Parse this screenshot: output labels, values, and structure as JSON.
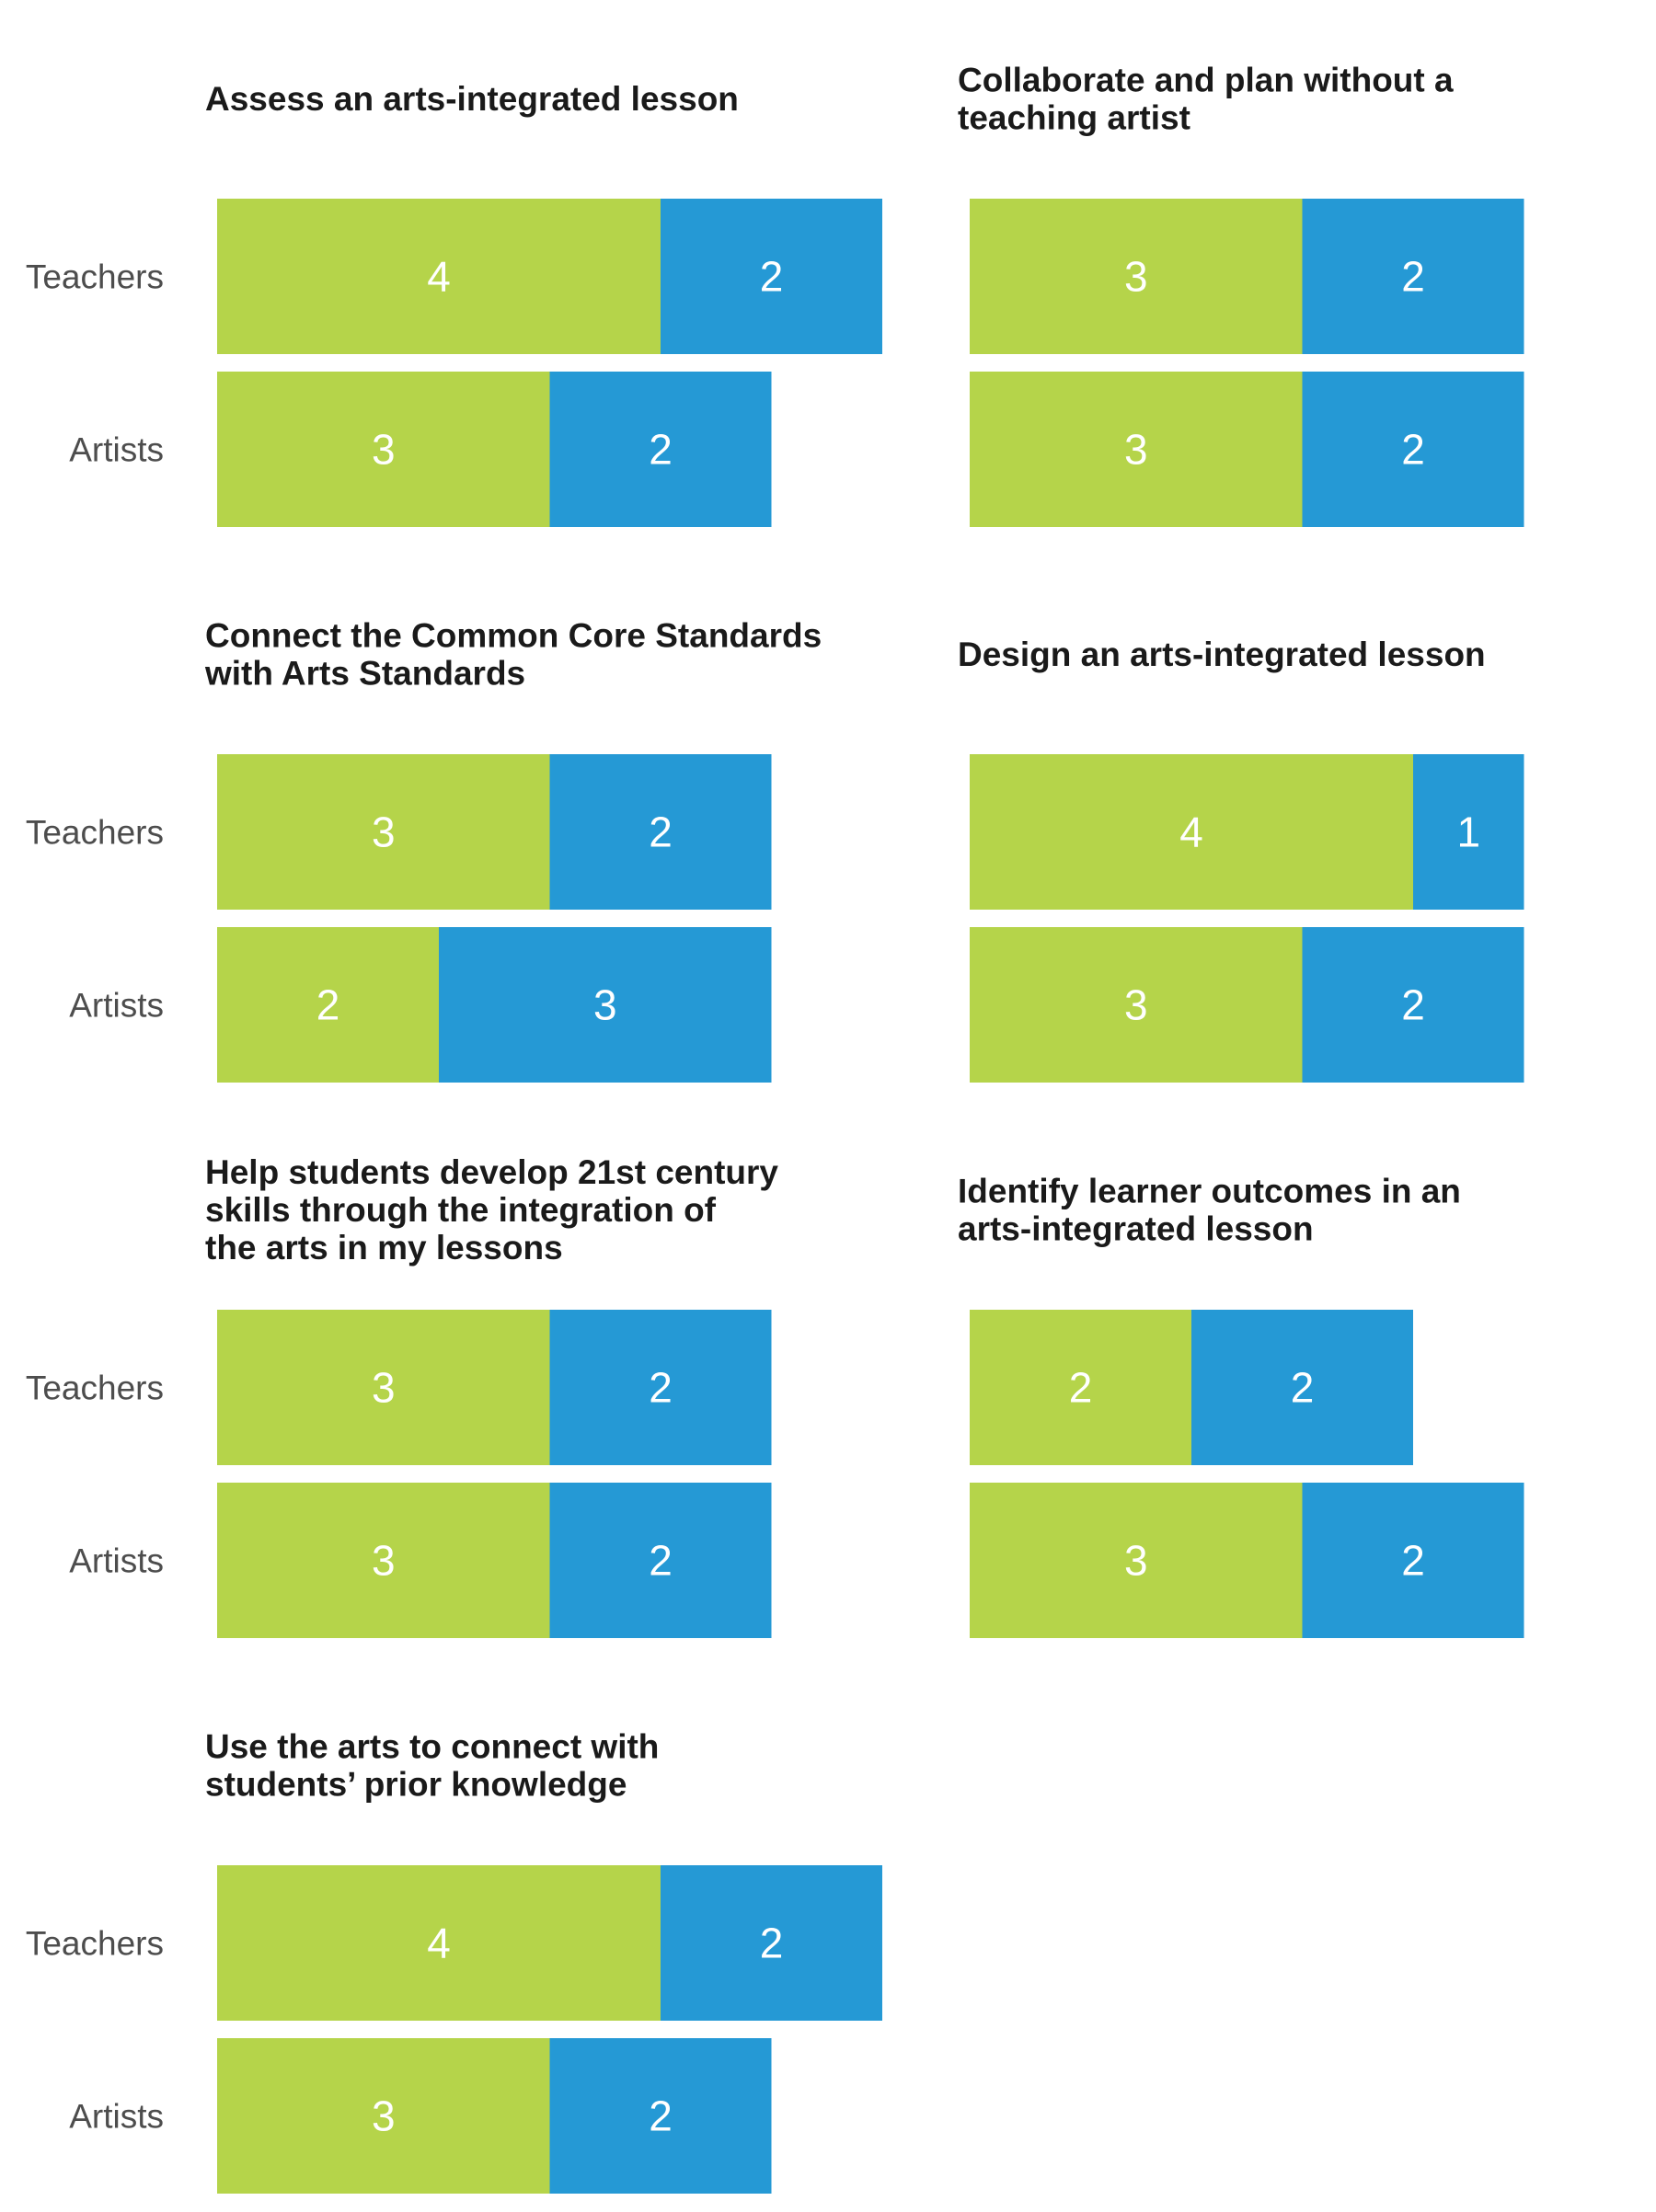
{
  "colors": {
    "green": "#b5d44a",
    "blue": "#2599d5",
    "title_text": "#1a1a1a",
    "label_text": "#4d4d4d",
    "segment_text": "#ffffff"
  },
  "chart_data": [
    {
      "type": "bar",
      "orientation": "horizontal",
      "stacked": true,
      "title": "Assess an arts-integrated lesson",
      "categories": [
        "Teachers",
        "Artists"
      ],
      "series": [
        {
          "color": "#b5d44a",
          "values": [
            4,
            3
          ]
        },
        {
          "color": "#2599d5",
          "values": [
            2,
            2
          ]
        }
      ]
    },
    {
      "type": "bar",
      "orientation": "horizontal",
      "stacked": true,
      "title": "Collaborate and plan without a\nteaching artist",
      "categories": [
        "",
        ""
      ],
      "series": [
        {
          "color": "#b5d44a",
          "values": [
            3,
            3
          ]
        },
        {
          "color": "#2599d5",
          "values": [
            2,
            2
          ]
        }
      ]
    },
    {
      "type": "bar",
      "orientation": "horizontal",
      "stacked": true,
      "title": "Connect the Common Core Standards\nwith Arts Standards",
      "categories": [
        "Teachers",
        "Artists"
      ],
      "series": [
        {
          "color": "#b5d44a",
          "values": [
            3,
            2
          ]
        },
        {
          "color": "#2599d5",
          "values": [
            2,
            3
          ]
        }
      ]
    },
    {
      "type": "bar",
      "orientation": "horizontal",
      "stacked": true,
      "title": "Design an arts-integrated lesson",
      "categories": [
        "",
        ""
      ],
      "series": [
        {
          "color": "#b5d44a",
          "values": [
            4,
            3
          ]
        },
        {
          "color": "#2599d5",
          "values": [
            1,
            2
          ]
        }
      ]
    },
    {
      "type": "bar",
      "orientation": "horizontal",
      "stacked": true,
      "title": "Help students develop 21st century\nskills through the integration of\nthe arts in my lessons",
      "categories": [
        "Teachers",
        "Artists"
      ],
      "series": [
        {
          "color": "#b5d44a",
          "values": [
            3,
            3
          ]
        },
        {
          "color": "#2599d5",
          "values": [
            2,
            2
          ]
        }
      ]
    },
    {
      "type": "bar",
      "orientation": "horizontal",
      "stacked": true,
      "title": "Identify learner outcomes in an\narts-integrated lesson",
      "categories": [
        "",
        ""
      ],
      "series": [
        {
          "color": "#b5d44a",
          "values": [
            2,
            3
          ]
        },
        {
          "color": "#2599d5",
          "values": [
            2,
            2
          ]
        }
      ]
    },
    {
      "type": "bar",
      "orientation": "horizontal",
      "stacked": true,
      "title": "Use the arts to connect with\nstudents’ prior knowledge",
      "categories": [
        "Teachers",
        "Artists"
      ],
      "series": [
        {
          "color": "#b5d44a",
          "values": [
            4,
            3
          ]
        },
        {
          "color": "#2599d5",
          "values": [
            2,
            2
          ]
        }
      ]
    }
  ]
}
